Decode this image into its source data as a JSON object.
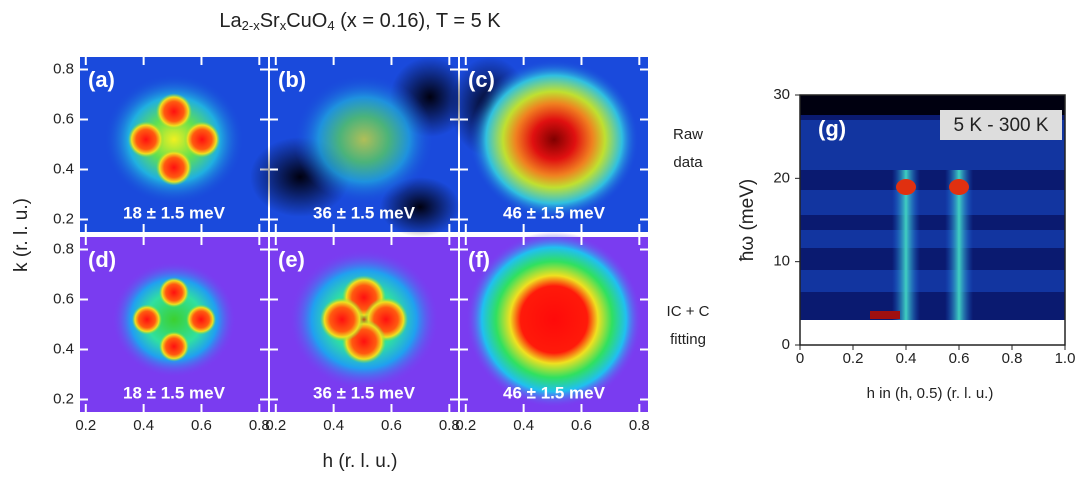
{
  "title": {
    "parts": [
      "La",
      "2-x",
      "Sr",
      "x",
      "CuO",
      "4",
      " (x = 0.16), T = 5 K"
    ]
  },
  "panels": [
    {
      "label": "(a)",
      "energy": "18 ± 1.5 meV"
    },
    {
      "label": "(b)",
      "energy": "36 ± 1.5 meV"
    },
    {
      "label": "(c)",
      "energy": "46 ± 1.5 meV"
    },
    {
      "label": "(d)",
      "energy": "18 ± 1.5 meV"
    },
    {
      "label": "(e)",
      "energy": "36 ± 1.5 meV"
    },
    {
      "label": "(f)",
      "energy": "46 ± 1.5 meV"
    }
  ],
  "row_labels": [
    [
      "Raw",
      "data"
    ],
    [
      "IC + C",
      "fitting"
    ]
  ],
  "maps": {
    "xlabel": "h (r. l. u.)",
    "ylabel": "k (r. l. u.)",
    "xticks": [
      "0.2",
      "0.4",
      "0.6",
      "0.8"
    ],
    "yticks": [
      "0.2",
      "0.4",
      "0.6",
      "0.8"
    ]
  },
  "panel_g": {
    "label": "(g)",
    "note": "5 K - 300 K",
    "xlabel": "h in (h, 0.5) (r. l. u.)",
    "ylabel": "ħω (meV)",
    "xticks": [
      "0",
      "0.2",
      "0.4",
      "0.6",
      "0.8",
      "1.0"
    ],
    "yticks": [
      "0",
      "10",
      "20",
      "30"
    ]
  }
}
